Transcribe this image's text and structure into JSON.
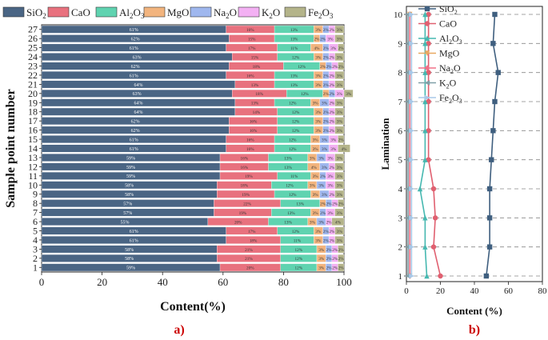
{
  "figure": {
    "label_a": "a)",
    "label_b": "b)"
  },
  "chart_data": [
    {
      "type": "bar",
      "orientation": "horizontal",
      "stacked": true,
      "xlabel": "Content(%)",
      "ylabel": "Sample point number",
      "xlim": [
        0,
        100
      ],
      "xticks": [
        "0",
        "20",
        "40",
        "60",
        "80",
        "100"
      ],
      "categories": [
        "1",
        "2",
        "3",
        "4",
        "5",
        "6",
        "7",
        "8",
        "9",
        "10",
        "11",
        "12",
        "13",
        "14",
        "15",
        "16",
        "17",
        "18",
        "19",
        "20",
        "21",
        "22",
        "23",
        "24",
        "25",
        "26",
        "27"
      ],
      "legend_position": "top",
      "series": [
        {
          "name": "SiO2",
          "name_main": "SiO",
          "name_sub": "2",
          "color": "#4a6584",
          "values": [
            59,
            58,
            58,
            61,
            61,
            55,
            57,
            57,
            58,
            58,
            59,
            59,
            59,
            61,
            61,
            62,
            62,
            64,
            64,
            63,
            64,
            61,
            62,
            63,
            61,
            62,
            61
          ]
        },
        {
          "name": "CaO",
          "name_main": "CaO",
          "name_sub": "",
          "color": "#e8717e",
          "values": [
            20,
            21,
            21,
            18,
            17,
            20,
            19,
            22,
            19,
            18,
            19,
            16,
            16,
            16,
            16,
            16,
            16,
            14,
            13,
            18,
            13,
            16,
            18,
            15,
            17,
            15,
            16
          ]
        },
        {
          "name": "Al2O3",
          "name_main": "Al",
          "name_sub": "2",
          "name_main2": "O",
          "name_sub2": "3",
          "color": "#5fd3b0",
          "values": [
            12,
            12,
            12,
            11,
            12,
            13,
            13,
            13,
            12,
            12,
            11,
            13,
            13,
            12,
            12,
            12,
            12,
            12,
            12,
            12,
            13,
            13,
            12,
            12,
            11,
            13,
            13
          ]
        },
        {
          "name": "MgO",
          "name_main": "MgO",
          "name_sub": "",
          "color": "#f2b47e",
          "values": [
            3,
            3,
            3,
            3,
            3,
            3,
            3,
            2,
            3,
            3,
            3,
            4,
            3,
            3,
            3,
            3,
            3,
            3,
            3,
            2,
            3,
            3,
            2,
            3,
            4,
            2,
            3
          ]
        },
        {
          "name": "Na2O",
          "name_main": "Na",
          "name_sub": "2",
          "name_main2": "O",
          "name_sub2": "",
          "color": "#9fb7ee",
          "values": [
            2,
            2,
            2,
            2,
            2,
            3,
            2,
            2,
            3,
            3,
            2,
            3,
            3,
            3,
            3,
            2,
            2,
            2,
            3,
            2,
            2,
            2,
            2,
            2,
            2,
            2,
            2
          ]
        },
        {
          "name": "K2O",
          "name_main": "K",
          "name_sub": "2",
          "name_main2": "O",
          "name_sub2": "",
          "color": "#f3b0f3",
          "values": [
            2,
            2,
            2,
            2,
            2,
            2,
            3,
            2,
            2,
            3,
            3,
            2,
            3,
            3,
            3,
            2,
            2,
            2,
            2,
            3,
            2,
            2,
            2,
            2,
            3,
            3,
            2
          ]
        },
        {
          "name": "Fe2O3",
          "name_main": "Fe",
          "name_sub": "2",
          "name_main2": "O",
          "name_sub2": "3",
          "color": "#b4b48a",
          "values": [
            2,
            2,
            2,
            3,
            3,
            4,
            3,
            2,
            3,
            3,
            3,
            3,
            3,
            4,
            2,
            3,
            3,
            3,
            3,
            3,
            3,
            3,
            2,
            3,
            2,
            3,
            3
          ]
        }
      ],
      "data_labels": {
        "SiO2": [
          "59%",
          "58%",
          "58%",
          "61%",
          "61%",
          "55%",
          "57%",
          "57%",
          "58%",
          "58%",
          "59%",
          "59%",
          "59%",
          "61%",
          "61%",
          "62%",
          "62%",
          "64%",
          "64%",
          "63%",
          "64%",
          "61%",
          "62%",
          "63%",
          "61%",
          "62%",
          "61%"
        ],
        "CaO": [
          "20%",
          "21%",
          "21%",
          "18%",
          "17%",
          "20%",
          "19%",
          "22%",
          "19%",
          "18%",
          "19%",
          "16%",
          "16%",
          "16%",
          "16%",
          "16%",
          "16%",
          "14%",
          "13%",
          "18%",
          "13%",
          "16%",
          "18%",
          "15%",
          "17%",
          "15%",
          "16%"
        ],
        "Al2O3": [
          "12%",
          "12%",
          "12%",
          "11%",
          "12%",
          "13%",
          "13%",
          "13%",
          "12%",
          "12%",
          "11%",
          "13%",
          "13%",
          "12%",
          "12%",
          "12%",
          "12%",
          "12%",
          "12%",
          "12%",
          "13%",
          "13%",
          "12%",
          "12%",
          "11%",
          "13%",
          "13%"
        ],
        "MgO": [
          "3%",
          "3%",
          "3%",
          "3%",
          "3%",
          "3%",
          "3%",
          "2%",
          "3%",
          "3%",
          "3%",
          "4%",
          "3%",
          "3%",
          "3%",
          "3%",
          "3%",
          "3%",
          "3%",
          "2%",
          "3%",
          "3%",
          "2%",
          "3%",
          "4%",
          "2%",
          "3%"
        ],
        "Na2O": [
          "2%",
          "2%",
          "2%",
          "2%",
          "2%",
          "3%",
          "2%",
          "2%",
          "3%",
          "3%",
          "2%",
          "3%",
          "3%",
          "3%",
          "3%",
          "2%",
          "2%",
          "2%",
          "3%",
          "2%",
          "2%",
          "2%",
          "2%",
          "2%",
          "2%",
          "2%",
          "2%"
        ],
        "K2O": [
          "2%",
          "2%",
          "2%",
          "2%",
          "2%",
          "2%",
          "3%",
          "2%",
          "2%",
          "3%",
          "3%",
          "2%",
          "3%",
          "3%",
          "3%",
          "2%",
          "2%",
          "2%",
          "2%",
          "3%",
          "2%",
          "2%",
          "2%",
          "2%",
          "3%",
          "3%",
          "2%"
        ],
        "Fe2O3": [
          "2%",
          "2%",
          "2%",
          "3%",
          "3%",
          "4%",
          "3%",
          "2%",
          "3%",
          "3%",
          "3%",
          "3%",
          "3%",
          "4%",
          "2%",
          "3%",
          "3%",
          "3%",
          "3%",
          "3%",
          "3%",
          "3%",
          "2%",
          "3%",
          "2%",
          "3%",
          "3%"
        ]
      }
    },
    {
      "type": "line",
      "orientation": "vertical-profile",
      "xlabel": "Content (%)",
      "ylabel": "Lamination",
      "xlim": [
        0,
        80
      ],
      "ylim": [
        1,
        10
      ],
      "xticks": [
        "0",
        "20",
        "40",
        "60",
        "80"
      ],
      "yticks": [
        "1",
        "2",
        "3",
        "4",
        "5",
        "6",
        "7",
        "8",
        "9",
        "10"
      ],
      "grid": "horizontal dashed",
      "legend_position": "top-left",
      "y": [
        1,
        2,
        3,
        4,
        5,
        6,
        7,
        8,
        9,
        10
      ],
      "series": [
        {
          "name": "SiO2",
          "name_main": "SiO",
          "name_sub": "2",
          "color": "#3f5f7f",
          "marker": "square",
          "values": [
            47,
            49,
            49,
            49,
            50,
            51,
            52,
            54,
            51,
            52
          ]
        },
        {
          "name": "CaO",
          "name_main": "CaO",
          "name_sub": "",
          "color": "#e06070",
          "marker": "circle",
          "values": [
            20,
            16,
            17,
            16,
            13,
            13,
            13,
            13,
            13,
            13
          ]
        },
        {
          "name": "Al2O3",
          "name_main": "Al",
          "name_sub": "2",
          "name_main2": "O",
          "name_sub2": "3",
          "color": "#46b8b0",
          "marker": "triangle-up",
          "values": [
            12,
            11,
            11,
            8,
            11,
            11,
            11,
            11,
            11,
            11
          ]
        },
        {
          "name": "MgO",
          "name_main": "MgO",
          "name_sub": "",
          "color": "#e8a860",
          "marker": "triangle-down",
          "values": [
            2,
            2,
            2,
            2,
            2,
            2,
            2,
            2,
            2,
            2
          ]
        },
        {
          "name": "Na2O",
          "name_main": "Na",
          "name_sub": "2",
          "name_main2": "O",
          "name_sub2": "",
          "color": "#f07088",
          "marker": "diamond",
          "values": [
            2,
            2,
            2,
            2,
            2,
            2,
            2,
            2,
            2,
            2
          ]
        },
        {
          "name": "K2O",
          "name_main": "K",
          "name_sub": "2",
          "name_main2": "O",
          "name_sub2": "",
          "color": "#80a0a8",
          "marker": "triangle-left",
          "values": [
            1,
            1,
            1,
            1,
            1,
            1,
            1,
            1,
            1,
            1
          ]
        },
        {
          "name": "Fe2O3",
          "name_main": "Fe",
          "name_sub": "2",
          "name_main2": "O",
          "name_sub2": "3",
          "color": "#a8c8e8",
          "marker": "triangle-right",
          "values": [
            3,
            3,
            3,
            3,
            3,
            3,
            3,
            3,
            3,
            3
          ]
        }
      ]
    }
  ]
}
